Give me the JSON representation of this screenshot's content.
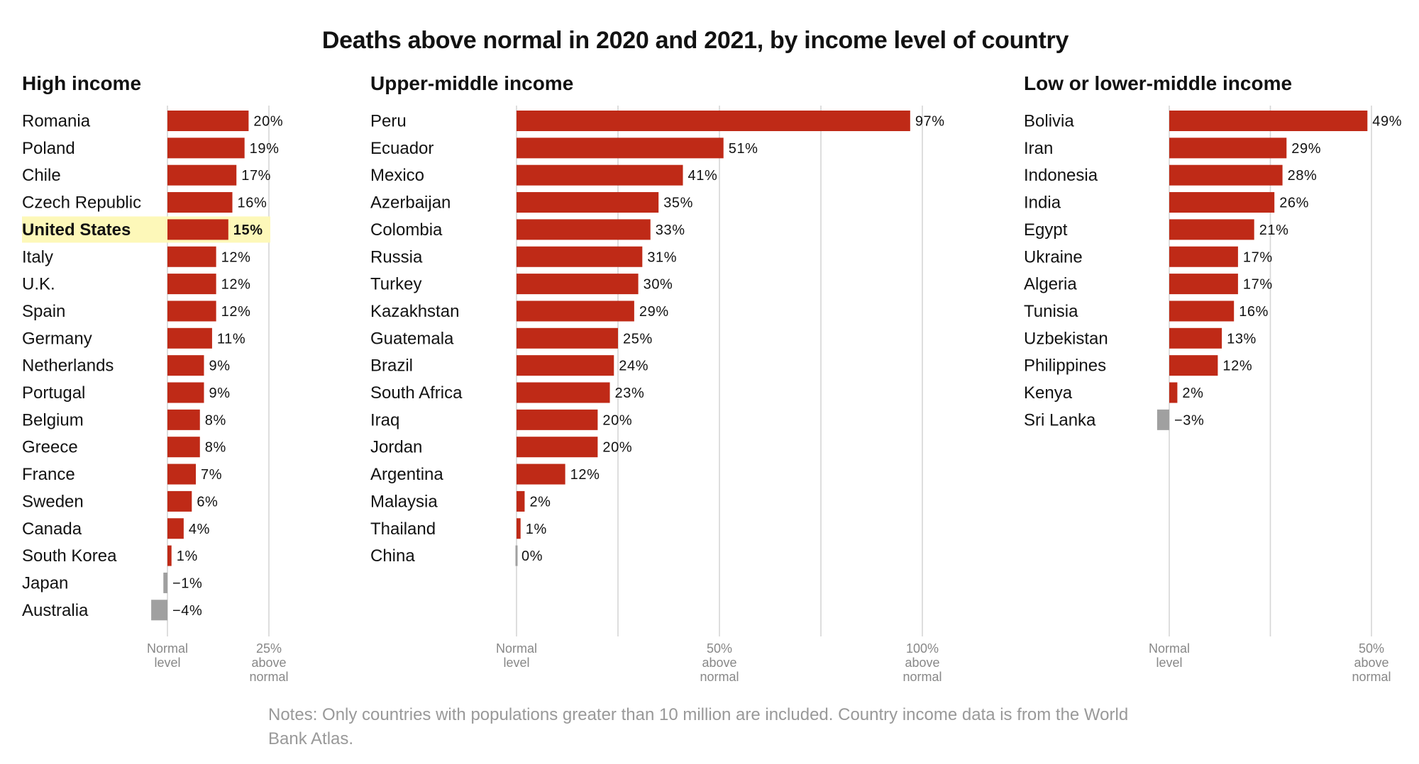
{
  "title": "Deaths above normal in 2020 and 2021, by income level of country",
  "notes": "Notes: Only countries with populations greater than 10 million are included. Country income data is from the World Bank Atlas.",
  "colors": {
    "positive": "#bf2a17",
    "negative": "#a0a0a0",
    "highlight": "#fdf8b9"
  },
  "chart_data": [
    {
      "type": "bar",
      "orientation": "horizontal",
      "title": "High income",
      "unit": "% above normal",
      "categories": [
        "Romania",
        "Poland",
        "Chile",
        "Czech Republic",
        "United States",
        "Italy",
        "U.K.",
        "Spain",
        "Germany",
        "Netherlands",
        "Portugal",
        "Belgium",
        "Greece",
        "France",
        "Sweden",
        "Canada",
        "South Korea",
        "Japan",
        "Australia"
      ],
      "values": [
        20,
        19,
        17,
        16,
        15,
        12,
        12,
        12,
        11,
        9,
        9,
        8,
        8,
        7,
        6,
        4,
        1,
        -1,
        -4
      ],
      "highlight": "United States",
      "xlim": [
        -4,
        25
      ],
      "ticks": [
        {
          "value": 0,
          "label": [
            "Normal",
            "level"
          ]
        },
        {
          "value": 25,
          "label": [
            "25%",
            "above",
            "normal"
          ]
        }
      ]
    },
    {
      "type": "bar",
      "orientation": "horizontal",
      "title": "Upper-middle income",
      "unit": "% above normal",
      "categories": [
        "Peru",
        "Ecuador",
        "Mexico",
        "Azerbaijan",
        "Colombia",
        "Russia",
        "Turkey",
        "Kazakhstan",
        "Guatemala",
        "Brazil",
        "South Africa",
        "Iraq",
        "Jordan",
        "Argentina",
        "Malaysia",
        "Thailand",
        "China"
      ],
      "values": [
        97,
        51,
        41,
        35,
        33,
        31,
        30,
        29,
        25,
        24,
        23,
        20,
        20,
        12,
        2,
        1,
        0
      ],
      "xlim": [
        0,
        100
      ],
      "gridlines": [
        0,
        25,
        50,
        75,
        100
      ],
      "ticks": [
        {
          "value": 0,
          "label": [
            "Normal",
            "level"
          ]
        },
        {
          "value": 50,
          "label": [
            "50%",
            "above",
            "normal"
          ]
        },
        {
          "value": 100,
          "label": [
            "100%",
            "above",
            "normal"
          ]
        }
      ]
    },
    {
      "type": "bar",
      "orientation": "horizontal",
      "title": "Low or lower-middle income",
      "unit": "% above normal",
      "categories": [
        "Bolivia",
        "Iran",
        "Indonesia",
        "India",
        "Egypt",
        "Ukraine",
        "Algeria",
        "Tunisia",
        "Uzbekistan",
        "Philippines",
        "Kenya",
        "Sri Lanka"
      ],
      "values": [
        49,
        29,
        28,
        26,
        21,
        17,
        17,
        16,
        13,
        12,
        2,
        -3
      ],
      "xlim": [
        -3,
        50
      ],
      "gridlines": [
        0,
        25,
        50
      ],
      "ticks": [
        {
          "value": 0,
          "label": [
            "Normal",
            "level"
          ]
        },
        {
          "value": 50,
          "label": [
            "50%",
            "above",
            "normal"
          ]
        }
      ]
    }
  ]
}
